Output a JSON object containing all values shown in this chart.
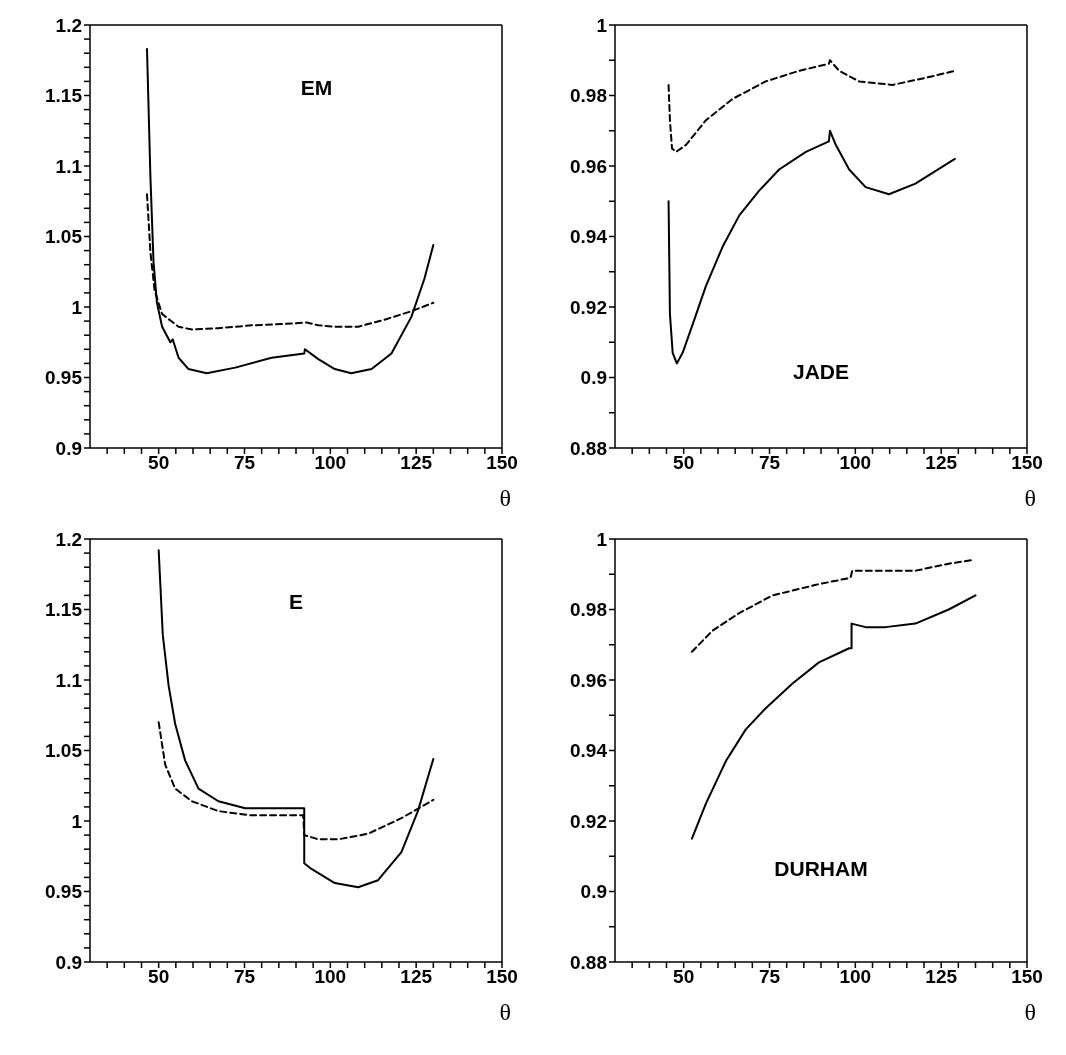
{
  "chart_data": [
    {
      "type": "line",
      "annotations": [
        "EM"
      ],
      "xlabel": "θ",
      "xlim": [
        30,
        150
      ],
      "xticks": [
        {
          "value": 35,
          "label": null
        },
        {
          "value": 40,
          "label": null
        },
        {
          "value": 45,
          "label": null
        },
        50,
        {
          "value": 55,
          "label": null
        },
        {
          "value": 60,
          "label": null
        },
        {
          "value": 65,
          "label": null
        },
        {
          "value": 70,
          "label": null
        },
        75,
        {
          "value": 80,
          "label": null
        },
        {
          "value": 85,
          "label": null
        },
        {
          "value": 90,
          "label": null
        },
        {
          "value": 95,
          "label": null
        },
        100,
        {
          "value": 105,
          "label": null
        },
        {
          "value": 110,
          "label": null
        },
        {
          "value": 115,
          "label": null
        },
        {
          "value": 120,
          "label": null
        },
        125,
        {
          "value": 130,
          "label": null
        },
        {
          "value": 135,
          "label": null
        },
        {
          "value": 140,
          "label": null
        },
        {
          "value": 145,
          "label": null
        },
        150
      ],
      "ylim": [
        0.9,
        1.2
      ],
      "yticks": [
        0.9,
        {
          "value": 0.91,
          "label": null
        },
        {
          "value": 0.92,
          "label": null
        },
        {
          "value": 0.93,
          "label": null
        },
        {
          "value": 0.94,
          "label": null
        },
        0.95,
        {
          "value": 0.96,
          "label": null
        },
        {
          "value": 0.97,
          "label": null
        },
        {
          "value": 0.98,
          "label": null
        },
        {
          "value": 0.99,
          "label": null
        },
        1,
        {
          "value": 1.01,
          "label": null
        },
        {
          "value": 1.02,
          "label": null
        },
        {
          "value": 1.03,
          "label": null
        },
        {
          "value": 1.04,
          "label": null
        },
        1.05,
        {
          "value": 1.06,
          "label": null
        },
        {
          "value": 1.07,
          "label": null
        },
        {
          "value": 1.08,
          "label": null
        },
        {
          "value": 1.09,
          "label": null
        },
        1.1,
        {
          "value": 1.11,
          "label": null
        },
        {
          "value": 1.12,
          "label": null
        },
        {
          "value": 1.13,
          "label": null
        },
        {
          "value": 1.14,
          "label": null
        },
        1.15,
        {
          "value": 1.16,
          "label": null
        },
        {
          "value": 1.17,
          "label": null
        },
        {
          "value": 1.18,
          "label": null
        },
        {
          "value": 1.19,
          "label": null
        },
        1.2
      ],
      "series": [
        {
          "color": "#000000",
          "line_style": "solid",
          "x": [
            46.6,
            47.6,
            48.5,
            49.5,
            51,
            53.4,
            54.1,
            55.8,
            58.7,
            64,
            72.3,
            82.9,
            92.4,
            92.6,
            96.5,
            101.3,
            106.1,
            112,
            117.8,
            123.6,
            127.4,
            130
          ],
          "values": [
            1.183,
            1.092,
            1.032,
            1.003,
            0.986,
            0.975,
            0.977,
            0.964,
            0.956,
            0.953,
            0.957,
            0.964,
            0.967,
            0.97,
            0.963,
            0.956,
            0.953,
            0.956,
            0.967,
            0.993,
            1.02,
            1.044
          ]
        },
        {
          "color": "#000000",
          "line_style": "dashed",
          "x": [
            46.6,
            47.6,
            48.8,
            51,
            55.8,
            59.7,
            67.4,
            77.1,
            86.8,
            93.1,
            96.5,
            101.3,
            108.1,
            115.8,
            123.6,
            130
          ],
          "values": [
            1.08,
            1.039,
            1.012,
            0.995,
            0.986,
            0.984,
            0.985,
            0.987,
            0.988,
            0.989,
            0.987,
            0.986,
            0.986,
            0.991,
            0.997,
            1.003
          ]
        }
      ]
    },
    {
      "type": "line",
      "annotations": [
        "JADE"
      ],
      "xlabel": "θ",
      "xlim": [
        30,
        150
      ],
      "xticks": [
        {
          "value": 35,
          "label": null
        },
        {
          "value": 40,
          "label": null
        },
        {
          "value": 45,
          "label": null
        },
        50,
        {
          "value": 55,
          "label": null
        },
        {
          "value": 60,
          "label": null
        },
        {
          "value": 65,
          "label": null
        },
        {
          "value": 70,
          "label": null
        },
        75,
        {
          "value": 80,
          "label": null
        },
        {
          "value": 85,
          "label": null
        },
        {
          "value": 90,
          "label": null
        },
        {
          "value": 95,
          "label": null
        },
        100,
        {
          "value": 105,
          "label": null
        },
        {
          "value": 110,
          "label": null
        },
        {
          "value": 115,
          "label": null
        },
        {
          "value": 120,
          "label": null
        },
        125,
        {
          "value": 130,
          "label": null
        },
        {
          "value": 135,
          "label": null
        },
        {
          "value": 140,
          "label": null
        },
        {
          "value": 145,
          "label": null
        },
        150
      ],
      "ylim": [
        0.88,
        1
      ],
      "yticks": [
        0.88,
        {
          "value": 0.89,
          "label": null
        },
        0.9,
        {
          "value": 0.91,
          "label": null
        },
        0.92,
        {
          "value": 0.93,
          "label": null
        },
        0.94,
        {
          "value": 0.95,
          "label": null
        },
        0.96,
        {
          "value": 0.97,
          "label": null
        },
        0.98,
        {
          "value": 0.99,
          "label": null
        },
        1
      ],
      "series": [
        {
          "color": "#000000",
          "line_style": "solid",
          "x": [
            45.6,
            46,
            46.8,
            48,
            49.7,
            52.6,
            56.5,
            61.3,
            66.2,
            72,
            77.8,
            85.6,
            92.3,
            92.6,
            94.3,
            98.2,
            103,
            109.8,
            117.5,
            129
          ],
          "values": [
            0.95,
            0.918,
            0.907,
            0.904,
            0.907,
            0.915,
            0.926,
            0.937,
            0.946,
            0.953,
            0.959,
            0.964,
            0.967,
            0.97,
            0.966,
            0.959,
            0.954,
            0.952,
            0.955,
            0.962
          ]
        },
        {
          "color": "#000000",
          "line_style": "dashed",
          "x": [
            45.6,
            46,
            46.6,
            47.8,
            50.7,
            56.5,
            64.2,
            73.9,
            83.6,
            92.3,
            92.6,
            95.3,
            101.1,
            110.8,
            120.4,
            129
          ],
          "values": [
            0.983,
            0.973,
            0.965,
            0.964,
            0.966,
            0.973,
            0.979,
            0.984,
            0.987,
            0.989,
            0.99,
            0.987,
            0.984,
            0.983,
            0.985,
            0.987
          ]
        }
      ]
    },
    {
      "type": "line",
      "annotations": [
        "E"
      ],
      "xlabel": "θ",
      "xlim": [
        30,
        150
      ],
      "xticks": [
        {
          "value": 35,
          "label": null
        },
        {
          "value": 40,
          "label": null
        },
        {
          "value": 45,
          "label": null
        },
        50,
        {
          "value": 55,
          "label": null
        },
        {
          "value": 60,
          "label": null
        },
        {
          "value": 65,
          "label": null
        },
        {
          "value": 70,
          "label": null
        },
        75,
        {
          "value": 80,
          "label": null
        },
        {
          "value": 85,
          "label": null
        },
        {
          "value": 90,
          "label": null
        },
        {
          "value": 95,
          "label": null
        },
        100,
        {
          "value": 105,
          "label": null
        },
        {
          "value": 110,
          "label": null
        },
        {
          "value": 115,
          "label": null
        },
        {
          "value": 120,
          "label": null
        },
        125,
        {
          "value": 130,
          "label": null
        },
        {
          "value": 135,
          "label": null
        },
        {
          "value": 140,
          "label": null
        },
        {
          "value": 145,
          "label": null
        },
        150
      ],
      "ylim": [
        0.9,
        1.2
      ],
      "yticks": [
        0.9,
        {
          "value": 0.91,
          "label": null
        },
        {
          "value": 0.92,
          "label": null
        },
        {
          "value": 0.93,
          "label": null
        },
        {
          "value": 0.94,
          "label": null
        },
        0.95,
        {
          "value": 0.96,
          "label": null
        },
        {
          "value": 0.97,
          "label": null
        },
        {
          "value": 0.98,
          "label": null
        },
        {
          "value": 0.99,
          "label": null
        },
        1,
        {
          "value": 1.01,
          "label": null
        },
        {
          "value": 1.02,
          "label": null
        },
        {
          "value": 1.03,
          "label": null
        },
        {
          "value": 1.04,
          "label": null
        },
        1.05,
        {
          "value": 1.06,
          "label": null
        },
        {
          "value": 1.07,
          "label": null
        },
        {
          "value": 1.08,
          "label": null
        },
        {
          "value": 1.09,
          "label": null
        },
        1.1,
        {
          "value": 1.11,
          "label": null
        },
        {
          "value": 1.12,
          "label": null
        },
        {
          "value": 1.13,
          "label": null
        },
        {
          "value": 1.14,
          "label": null
        },
        1.15,
        {
          "value": 1.16,
          "label": null
        },
        {
          "value": 1.17,
          "label": null
        },
        {
          "value": 1.18,
          "label": null
        },
        {
          "value": 1.19,
          "label": null
        },
        1.2
      ],
      "series": [
        {
          "color": "#000000",
          "line_style": "solid",
          "x": [
            50,
            51.2,
            52.9,
            54.8,
            57.7,
            61.6,
            67.4,
            75.2,
            92.4,
            92.4,
            94.5,
            101.3,
            108.1,
            113.9,
            120.7,
            125.5,
            130
          ],
          "values": [
            1.192,
            1.132,
            1.096,
            1.069,
            1.043,
            1.023,
            1.014,
            1.009,
            1.009,
            0.97,
            0.966,
            0.956,
            0.953,
            0.958,
            0.978,
            1.007,
            1.044
          ]
        },
        {
          "color": "#000000",
          "line_style": "dashed",
          "x": [
            50,
            51.9,
            54.8,
            59.7,
            67.4,
            77.1,
            92.1,
            92.4,
            96.5,
            102.3,
            111,
            120.7,
            130
          ],
          "values": [
            1.07,
            1.04,
            1.023,
            1.014,
            1.007,
            1.004,
            1.004,
            0.99,
            0.987,
            0.987,
            0.991,
            1.002,
            1.015
          ]
        }
      ]
    },
    {
      "type": "line",
      "annotations": [
        "DURHAM"
      ],
      "xlabel": "θ",
      "xlim": [
        30,
        150
      ],
      "xticks": [
        {
          "value": 35,
          "label": null
        },
        {
          "value": 40,
          "label": null
        },
        {
          "value": 45,
          "label": null
        },
        50,
        {
          "value": 55,
          "label": null
        },
        {
          "value": 60,
          "label": null
        },
        {
          "value": 65,
          "label": null
        },
        {
          "value": 70,
          "label": null
        },
        75,
        {
          "value": 80,
          "label": null
        },
        {
          "value": 85,
          "label": null
        },
        {
          "value": 90,
          "label": null
        },
        {
          "value": 95,
          "label": null
        },
        100,
        {
          "value": 105,
          "label": null
        },
        {
          "value": 110,
          "label": null
        },
        {
          "value": 115,
          "label": null
        },
        {
          "value": 120,
          "label": null
        },
        125,
        {
          "value": 130,
          "label": null
        },
        {
          "value": 135,
          "label": null
        },
        {
          "value": 140,
          "label": null
        },
        {
          "value": 145,
          "label": null
        },
        150
      ],
      "ylim": [
        0.88,
        1
      ],
      "yticks": [
        0.88,
        {
          "value": 0.89,
          "label": null
        },
        0.9,
        {
          "value": 0.91,
          "label": null
        },
        0.92,
        {
          "value": 0.93,
          "label": null
        },
        0.94,
        {
          "value": 0.95,
          "label": null
        },
        0.96,
        {
          "value": 0.97,
          "label": null
        },
        0.98,
        {
          "value": 0.99,
          "label": null
        },
        1
      ],
      "series": [
        {
          "color": "#000000",
          "line_style": "solid",
          "x": [
            52.4,
            56.5,
            62.3,
            68.1,
            73.9,
            81.7,
            89.4,
            98.2,
            98.9,
            98.9,
            103,
            108.8,
            117.5,
            127.2,
            135
          ],
          "values": [
            0.915,
            0.925,
            0.937,
            0.946,
            0.952,
            0.959,
            0.965,
            0.969,
            0.969,
            0.976,
            0.975,
            0.975,
            0.976,
            0.98,
            0.984
          ]
        },
        {
          "color": "#000000",
          "line_style": "dashed",
          "x": [
            52.4,
            58.4,
            66.2,
            75.9,
            88.5,
            98.6,
            99.1,
            107.8,
            117.5,
            127.2,
            134
          ],
          "values": [
            0.968,
            0.974,
            0.979,
            0.984,
            0.987,
            0.989,
            0.991,
            0.991,
            0.991,
            0.993,
            0.994
          ]
        }
      ]
    }
  ]
}
